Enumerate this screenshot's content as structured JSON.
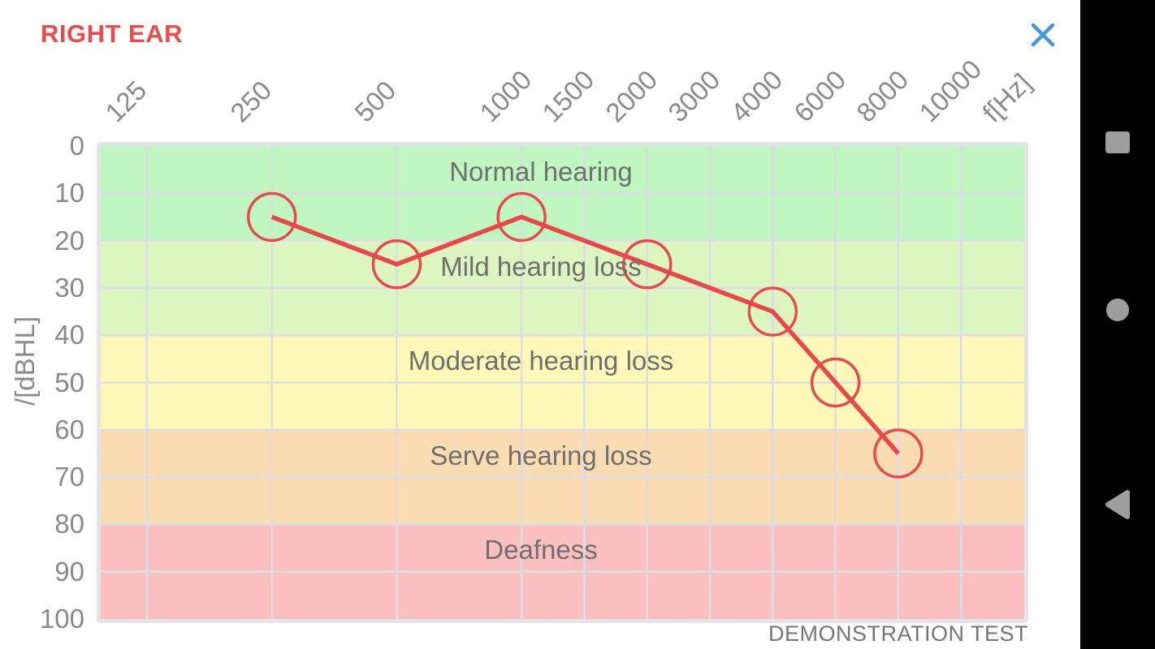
{
  "header": {
    "title": "RIGHT EAR",
    "close_icon": "close-x",
    "title_color": "#e84c4c",
    "close_color": "#4796da"
  },
  "footer": {
    "note": "DEMONSTRATION TEST"
  },
  "nav_bar": {
    "items": [
      {
        "name": "recents",
        "icon": "square-icon"
      },
      {
        "name": "home",
        "icon": "circle-icon"
      },
      {
        "name": "back",
        "icon": "triangle-icon"
      }
    ],
    "icon_color": "#9e9e9e",
    "background": "#000000"
  },
  "colors": {
    "grid": "#dbdde5",
    "axis_text": "#8a8a8a",
    "band_text": "#6f6f6f",
    "series_red": "#e8484a"
  },
  "chart_data": {
    "type": "line",
    "x_axis_label": "f[Hz]",
    "y_axis_label": "/[dBHL]",
    "x_ticks": [
      "125",
      "250",
      "500",
      "1000",
      "1500",
      "2000",
      "3000",
      "4000",
      "6000",
      "8000",
      "10000"
    ],
    "y_ticks": [
      0,
      10,
      20,
      30,
      40,
      50,
      60,
      70,
      80,
      90,
      100
    ],
    "ylim": [
      0,
      100
    ],
    "y_unit": "dBHL",
    "grid": true,
    "bands": [
      {
        "label": "Normal hearing",
        "range": [
          0,
          20
        ],
        "color": "#c0f6c0"
      },
      {
        "label": "Mild hearing loss",
        "range": [
          20,
          40
        ],
        "color": "#ddf5c1"
      },
      {
        "label": "Moderate hearing loss",
        "range": [
          40,
          60
        ],
        "color": "#fdf8b8"
      },
      {
        "label": "Serve hearing loss",
        "range": [
          60,
          80
        ],
        "color": "#fbdcb2"
      },
      {
        "label": "Deafness",
        "range": [
          80,
          100
        ],
        "color": "#fcbfbf"
      }
    ],
    "series": [
      {
        "name": "right ear threshold",
        "color": "#e8484a",
        "marker": "circle",
        "points": [
          {
            "f": 250,
            "db": 15
          },
          {
            "f": 500,
            "db": 25
          },
          {
            "f": 1000,
            "db": 15
          },
          {
            "f": 2000,
            "db": 25
          },
          {
            "f": 4000,
            "db": 35
          },
          {
            "f": 6000,
            "db": 50
          },
          {
            "f": 8000,
            "db": 65
          }
        ]
      }
    ]
  }
}
